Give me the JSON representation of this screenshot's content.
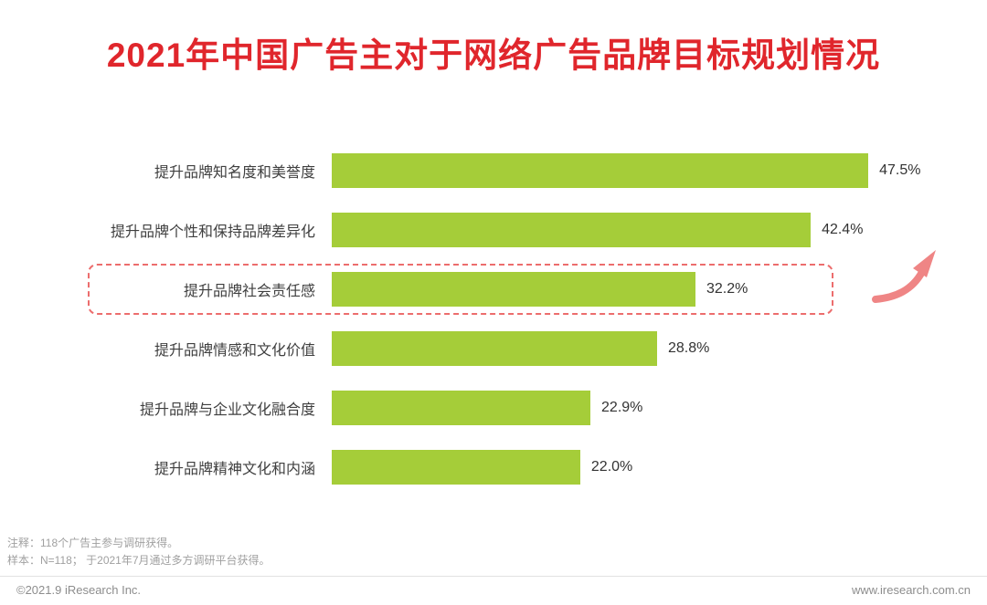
{
  "page": {
    "title": "2021年中国广告主对于网络广告品牌目标规划情况",
    "notes": [
      "注释：118个广告主参与调研获得。",
      "样本：N=118； 于2021年7月通过多方调研平台获得。"
    ],
    "footer": {
      "copyright": "©2021.9 iResearch Inc.",
      "website": "www.iresearch.com.cn"
    }
  },
  "colors": {
    "title_red": "#e0262c",
    "bar_green": "#a5cd39",
    "highlight_dashed_red": "#ec6d6d",
    "arrow_pink": "#ef8585",
    "label_gray": "#3f3f3f",
    "note_gray": "#a0a0a0"
  },
  "icons": {
    "trend_arrow": "curved-up-right-arrow"
  },
  "chart_data": {
    "type": "bar",
    "orientation": "horizontal",
    "title": "2021年中国广告主对于网络广告品牌目标规划情况",
    "categories": [
      "提升品牌知名度和美誉度",
      "提升品牌个性和保持品牌差异化",
      "提升品牌社会责任感",
      "提升品牌情感和文化价值",
      "提升品牌与企业文化融合度",
      "提升品牌精神文化和内涵"
    ],
    "values": [
      47.5,
      42.4,
      32.2,
      28.8,
      22.9,
      22.0
    ],
    "value_labels": [
      "47.5%",
      "42.4%",
      "32.2%",
      "28.8%",
      "22.9%",
      "22.0%"
    ],
    "xlim": [
      0,
      50
    ],
    "grid": false,
    "legend": false,
    "highlight_index": 2,
    "highlighted_category": "提升品牌社会责任感"
  }
}
